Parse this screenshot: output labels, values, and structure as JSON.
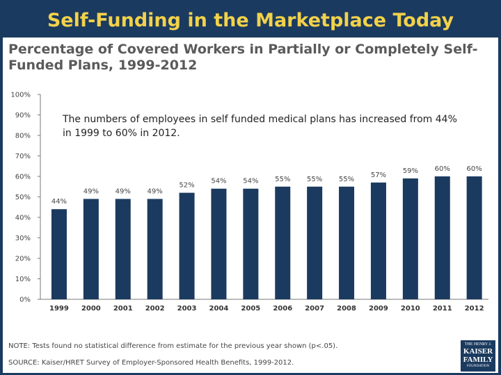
{
  "slide": {
    "title": "Self-Funding in the Marketplace Today",
    "annotation": "The numbers of employees in self funded medical plans has increased from 44% in 1999 to 60% in 2012.",
    "note": "NOTE: Tests found no statistical difference from estimate for the previous year shown (p<.05).",
    "source": "SOURCE: Kaiser/HRET Survey of Employer-Sponsored Health Benefits, 1999-2012.",
    "logo": {
      "line1": "THE HENRY J.",
      "line2": "KAISER",
      "line3": "FAMILY",
      "line4": "FOUNDATION"
    }
  },
  "colors": {
    "bar": "#1b3a5f",
    "title": "#f2d24a",
    "background": "#1b3a5f"
  },
  "chart_data": {
    "type": "bar",
    "title": "Percentage of Covered Workers in Partially or Completely Self-Funded Plans, 1999-2012",
    "categories": [
      "1999",
      "2000",
      "2001",
      "2002",
      "2003",
      "2004",
      "2005",
      "2006",
      "2007",
      "2008",
      "2009",
      "2010",
      "2011",
      "2012"
    ],
    "values": [
      44,
      49,
      49,
      49,
      52,
      54,
      54,
      55,
      55,
      55,
      57,
      59,
      60,
      60
    ],
    "data_labels": [
      "44%",
      "49%",
      "49%",
      "49%",
      "52%",
      "54%",
      "54%",
      "55%",
      "55%",
      "55%",
      "57%",
      "59%",
      "60%",
      "60%"
    ],
    "yticks": [
      "0%",
      "10%",
      "20%",
      "30%",
      "40%",
      "50%",
      "60%",
      "70%",
      "80%",
      "90%",
      "100%"
    ],
    "ylim": [
      0,
      100
    ],
    "xlabel": "",
    "ylabel": "",
    "grid": false
  }
}
